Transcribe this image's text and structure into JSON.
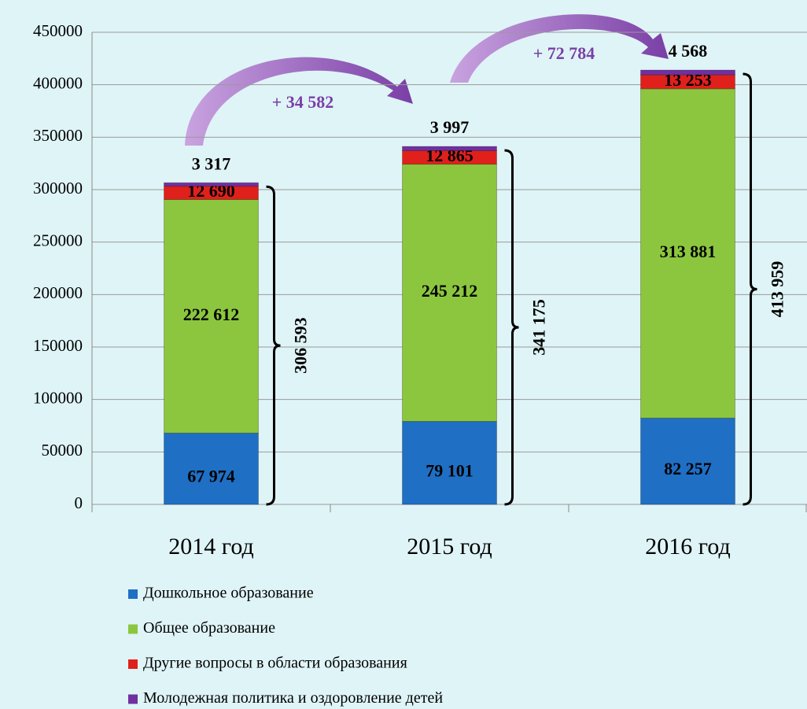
{
  "chart_data": {
    "type": "stacked_bar",
    "categories": [
      "2014 год",
      "2015 год",
      "2016 год"
    ],
    "series": [
      {
        "name": "Дошкольное образование",
        "color": "#1f6fc4",
        "values": [
          67974,
          79101,
          82257
        ],
        "value_labels": [
          "67 974",
          "79 101",
          "82 257"
        ]
      },
      {
        "name": "Общее образование",
        "color": "#8cc63f",
        "values": [
          222612,
          245212,
          313881
        ],
        "value_labels": [
          "222 612",
          "245 212",
          "313 881"
        ]
      },
      {
        "name": "Другие вопросы в области образования",
        "color": "#e0201b",
        "values": [
          12690,
          12865,
          13253
        ],
        "value_labels": [
          "12 690",
          "12 865",
          "13 253"
        ]
      },
      {
        "name": "Молодежная политика и оздоровление детей",
        "color": "#7030a0",
        "values": [
          3317,
          3997,
          4568
        ],
        "value_labels": [
          "3 317",
          "3 997",
          "4 568"
        ]
      }
    ],
    "totals": {
      "values": [
        306593,
        341175,
        413959
      ],
      "value_labels": [
        "306 593",
        "341 175",
        "413 959"
      ]
    },
    "annotations": [
      "+ 34 582",
      "+ 72 784"
    ],
    "ylim": [
      0,
      450000
    ],
    "yticks": [
      0,
      50000,
      100000,
      150000,
      200000,
      250000,
      300000,
      350000,
      400000,
      450000
    ],
    "grid": true
  }
}
